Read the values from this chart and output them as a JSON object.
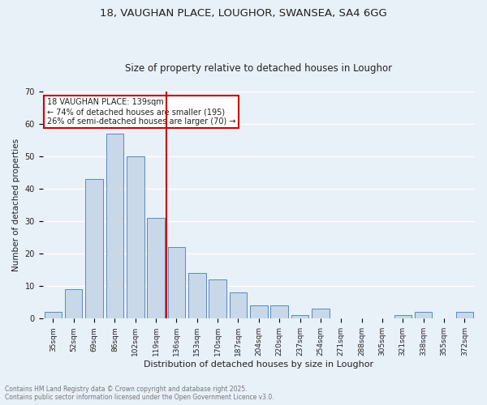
{
  "title1": "18, VAUGHAN PLACE, LOUGHOR, SWANSEA, SA4 6GG",
  "title2": "Size of property relative to detached houses in Loughor",
  "xlabel": "Distribution of detached houses by size in Loughor",
  "ylabel": "Number of detached properties",
  "bar_color": "#c8d8e8",
  "bar_edge_color": "#5a8abf",
  "background_color": "#e8f0f8",
  "grid_color": "#ffffff",
  "categories": [
    "35sqm",
    "52sqm",
    "69sqm",
    "86sqm",
    "102sqm",
    "119sqm",
    "136sqm",
    "153sqm",
    "170sqm",
    "187sqm",
    "204sqm",
    "220sqm",
    "237sqm",
    "254sqm",
    "271sqm",
    "288sqm",
    "305sqm",
    "321sqm",
    "338sqm",
    "355sqm",
    "372sqm"
  ],
  "values": [
    2,
    9,
    43,
    57,
    50,
    31,
    22,
    14,
    12,
    8,
    4,
    4,
    1,
    3,
    0,
    0,
    0,
    1,
    2,
    0,
    2
  ],
  "vline_pos": 5.5,
  "vline_color": "#cc0000",
  "annotation_text": "18 VAUGHAN PLACE: 139sqm\n← 74% of detached houses are smaller (195)\n26% of semi-detached houses are larger (70) →",
  "annotation_box_color": "#ffffff",
  "annotation_box_edge": "#cc0000",
  "ylim": [
    0,
    70
  ],
  "yticks": [
    0,
    10,
    20,
    30,
    40,
    50,
    60,
    70
  ],
  "footnote": "Contains HM Land Registry data © Crown copyright and database right 2025.\nContains public sector information licensed under the Open Government Licence v3.0.",
  "footnote_color": "#777777",
  "title_color": "#222222",
  "title1_fontsize": 9.5,
  "title2_fontsize": 8.5,
  "xlabel_fontsize": 8,
  "ylabel_fontsize": 7.5,
  "tick_fontsize": 6.5,
  "annot_fontsize": 7,
  "footnote_fontsize": 5.5
}
